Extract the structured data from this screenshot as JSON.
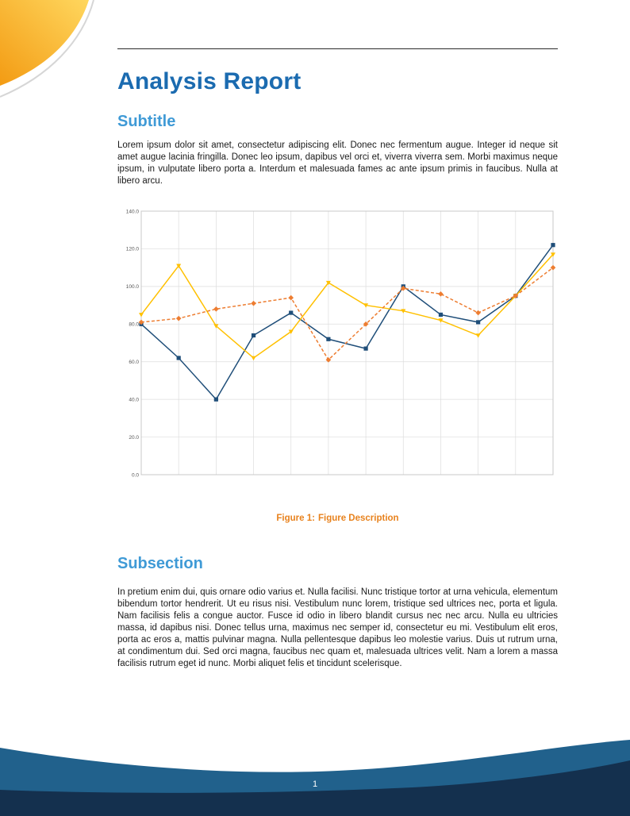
{
  "header": {
    "title": "Analysis Report"
  },
  "sections": {
    "subtitle": {
      "heading": "Subtitle",
      "body": "Lorem ipsum dolor sit amet, consectetur adipiscing elit. Donec nec fermentum augue. Integer id neque sit amet augue lacinia fringilla. Donec leo ipsum, dapibus vel orci et, viverra viverra sem. Morbi maximus neque ipsum, in vulputate libero porta a. Interdum et malesuada fames ac ante ipsum primis in faucibus. Nulla at libero arcu."
    },
    "subsection": {
      "heading": "Subsection",
      "body": "In pretium enim dui, quis ornare odio varius et. Nulla facilisi. Nunc tristique tortor at urna vehicula, elementum bibendum tortor hendrerit. Ut eu risus nisi. Vestibulum nunc lorem, tristique sed ultrices nec, porta et ligula. Nam facilisis felis a congue auctor. Fusce id odio in libero blandit cursus nec nec arcu. Nulla eu ultricies massa, id dapibus nisi. Donec tellus urna, maximus nec semper id, consectetur eu mi. Vestibulum elit eros, porta ac eros a, mattis pulvinar magna. Nulla pellentesque dapibus leo molestie varius. Duis ut rutrum urna, at condimentum dui. Sed orci magna, faucibus nec quam et, malesuada ultrices velit. Nam a lorem a massa facilisis rutrum eget id nunc. Morbi aliquet felis et tincidunt scelerisque."
    }
  },
  "figure": {
    "caption_label": "Figure 1:",
    "caption_text": "Figure Description"
  },
  "chart_data": {
    "type": "line",
    "title": "",
    "xlabel": "",
    "ylabel": "",
    "x_labels_visible": false,
    "ylim": [
      0,
      140
    ],
    "ytick_step": 20,
    "ytick_labels": [
      "0.0",
      "20.0",
      "40.0",
      "60.0",
      "80.0",
      "100.0",
      "120.0",
      "140.0"
    ],
    "grid": true,
    "legend": "none",
    "series": [
      {
        "name": "blue-series",
        "color": "#1f4e79",
        "marker": "square",
        "dash": null,
        "values": [
          80,
          62,
          40,
          74,
          86,
          72,
          67,
          100,
          85,
          81,
          95,
          122
        ]
      },
      {
        "name": "yellow-series",
        "color": "#ffc000",
        "marker": "triangle",
        "dash": null,
        "values": [
          85,
          111,
          79,
          62,
          76,
          102,
          90,
          87,
          82,
          74,
          95,
          117
        ]
      },
      {
        "name": "orange-series",
        "color": "#ed7d31",
        "marker": "diamond",
        "dash": "4 2.5",
        "values": [
          81,
          83,
          88,
          91,
          94,
          61,
          80,
          99,
          96,
          86,
          95,
          110
        ]
      }
    ]
  },
  "footer": {
    "page_number": "1"
  },
  "colors": {
    "title_blue": "#1b6bb0",
    "subtitle_blue": "#3f9ad6",
    "caption_orange": "#e8821d",
    "footer_wave_blue": "#21618c",
    "footer_navy": "#14304e",
    "corner_orange": "#f39b13",
    "corner_yellow": "#ffd75e",
    "corner_shadow": "#cccccc",
    "chart_grid": "#dddddd",
    "chart_frame": "#c8c8c8",
    "chart_tick_text": "#555555"
  }
}
